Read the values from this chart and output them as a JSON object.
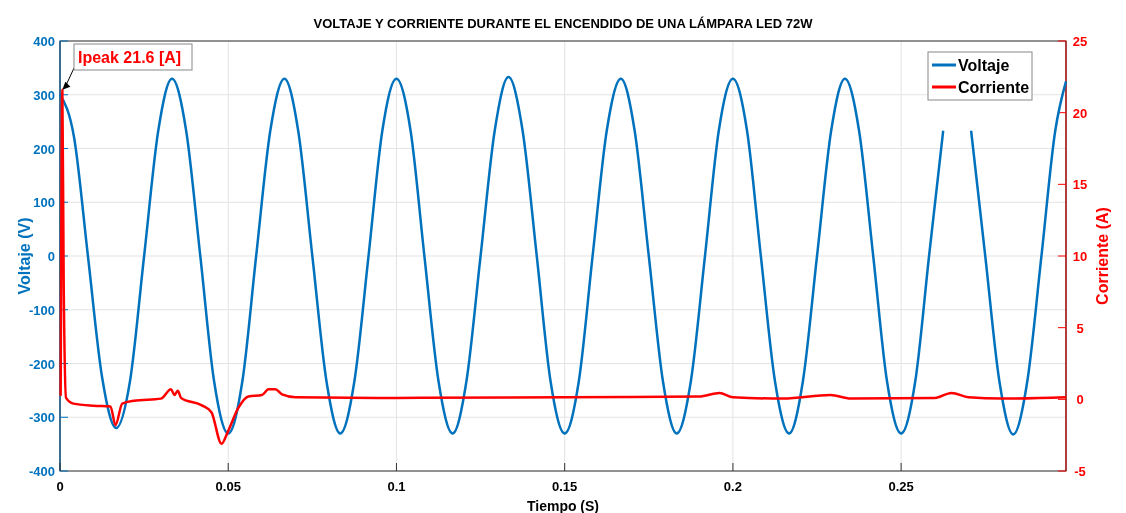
{
  "chart_data": {
    "type": "line",
    "title": "VOLTAJE Y CORRIENTE DURANTE EL ENCENDIDO DE UNA LÁMPARA LED 72W",
    "xlabel": "Tiempo (S)",
    "ylabel": "Voltaje (V)",
    "y2label": "Corriente (A)",
    "xlim": [
      0,
      0.299
    ],
    "xticks": [
      0,
      0.05,
      0.1,
      0.15,
      0.2,
      0.25
    ],
    "ylim": [
      -400,
      400
    ],
    "yticks": [
      -400,
      -300,
      -200,
      -100,
      0,
      100,
      200,
      300,
      400
    ],
    "y2lim": [
      -5,
      25
    ],
    "y2ticks": [
      -5,
      0,
      5,
      10,
      15,
      20,
      25
    ],
    "grid": true,
    "legend": "top right",
    "annotations": [
      "Ipeak 21.6 [A]"
    ],
    "series": [
      {
        "name": "Voltaje",
        "color": "#0072bd",
        "x": [
          0,
          0.0042,
          0.0083,
          0.0125,
          0.0167,
          0.0208,
          0.025,
          0.0292,
          0.0333,
          0.0375,
          0.0417,
          0.0458,
          0.05,
          0.0542,
          0.0583,
          0.0625,
          0.0667,
          0.0708,
          0.075,
          0.0792,
          0.0833,
          0.0875,
          0.0917,
          0.0958,
          0.1,
          0.1042,
          0.1083,
          0.1125,
          0.1167,
          0.1208,
          0.125,
          0.1292,
          0.1333,
          0.1375,
          0.1417,
          0.1458,
          0.15,
          0.1542,
          0.1583,
          0.1625,
          0.1667,
          0.1708,
          0.175,
          0.1792,
          0.1833,
          0.1875,
          0.1917,
          0.1958,
          0.2,
          0.2042,
          0.2083,
          0.2125,
          0.2167,
          0.2208,
          0.225,
          0.2292,
          0.2333,
          0.2375,
          0.2417,
          0.2458,
          0.25,
          0.2542,
          0.2583,
          0.2625,
          0.2667,
          0.2708,
          0.275,
          0.2792,
          0.2833,
          0.2875,
          0.2917,
          0.2958,
          0.299
        ],
        "values": [
          300,
          220,
          0,
          -225,
          -320,
          -233,
          0,
          233,
          330,
          233,
          0,
          -233,
          -330,
          -233,
          0,
          233,
          330,
          233,
          0,
          -233,
          -330,
          -233,
          0,
          233,
          330,
          233,
          0,
          -233,
          -330,
          -233,
          0,
          233,
          333,
          233,
          0,
          -233,
          -330,
          -233,
          0,
          233,
          330,
          233,
          0,
          -233,
          -330,
          -233,
          0,
          233,
          330,
          233,
          0,
          -233,
          -330,
          -233,
          0,
          233,
          330,
          233,
          0,
          -233,
          -330,
          -233,
          0,
          233,
          null,
          233,
          0,
          -233,
          -332,
          -233,
          0,
          233,
          325
        ]
      },
      {
        "name": "Corriente",
        "color": "#ff0000",
        "axis": "y2",
        "x": [
          0.0002,
          0.0007,
          0.0011,
          0.0018,
          0.004,
          0.01,
          0.015,
          0.0165,
          0.0185,
          0.022,
          0.03,
          0.033,
          0.034,
          0.035,
          0.036,
          0.042,
          0.045,
          0.048,
          0.05,
          0.053,
          0.056,
          0.06,
          0.062,
          0.064,
          0.066,
          0.07,
          0.1,
          0.15,
          0.19,
          0.196,
          0.2,
          0.215,
          0.229,
          0.235,
          0.26,
          0.265,
          0.27,
          0.28,
          0.299
        ],
        "values": [
          0.25,
          21.6,
          8,
          0.1,
          -0.3,
          -0.45,
          -0.5,
          -1.8,
          -0.3,
          -0.1,
          0.05,
          0.7,
          0.3,
          0.6,
          0.1,
          -0.4,
          -0.9,
          -3.1,
          -2.2,
          -0.6,
          0.2,
          0.3,
          0.7,
          0.7,
          0.35,
          0.15,
          0.1,
          0.15,
          0.2,
          0.45,
          0.15,
          0.05,
          0.3,
          0.05,
          0.1,
          0.45,
          0.15,
          0.05,
          0.15
        ]
      }
    ]
  }
}
